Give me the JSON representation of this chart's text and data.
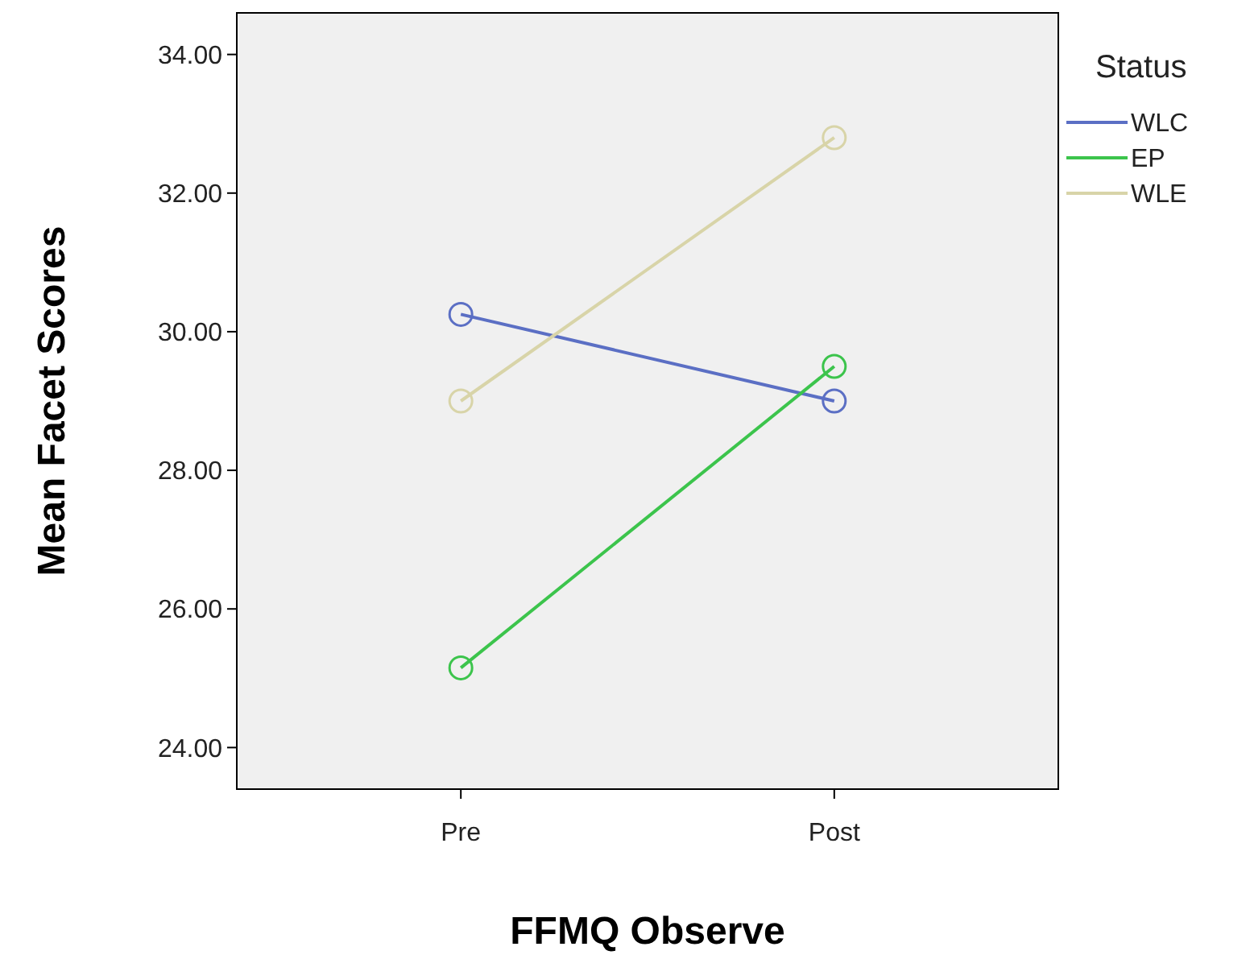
{
  "chart_data": {
    "type": "line",
    "xlabel": "FFMQ Observe",
    "ylabel": "Mean Facet Scores",
    "legend_title": "Status",
    "categories": [
      "Pre",
      "Post"
    ],
    "series": [
      {
        "name": "WLC",
        "color": "#5b6fc4",
        "values": [
          30.25,
          29.0
        ]
      },
      {
        "name": "EP",
        "color": "#3cc44c",
        "values": [
          25.15,
          29.5
        ]
      },
      {
        "name": "WLE",
        "color": "#d8d4a8",
        "values": [
          29.0,
          32.8
        ]
      }
    ],
    "ylim": [
      23.4,
      34.6
    ],
    "yticks": [
      {
        "value": 24,
        "label": "24.00"
      },
      {
        "value": 26,
        "label": "26.00"
      },
      {
        "value": 28,
        "label": "28.00"
      },
      {
        "value": 30,
        "label": "30.00"
      },
      {
        "value": 32,
        "label": "32.00"
      },
      {
        "value": 34,
        "label": "34.00"
      }
    ],
    "grid": false,
    "legend": "right",
    "marker": "circle",
    "line_style": "solid"
  }
}
